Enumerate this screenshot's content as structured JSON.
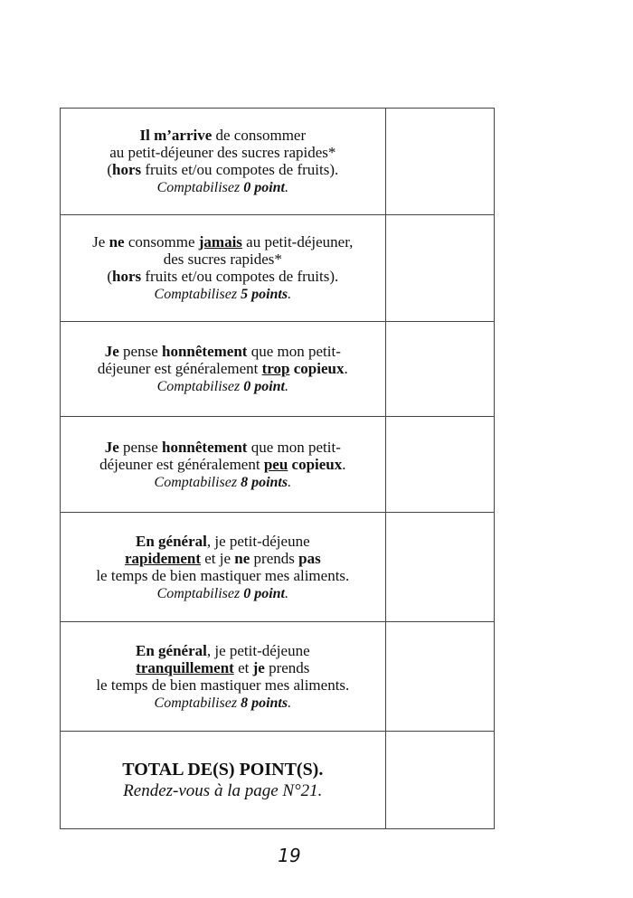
{
  "rows": [
    {
      "lines": [
        [
          {
            "t": "Il m’arrive",
            "b": 1
          },
          {
            "t": " de consommer"
          }
        ],
        [
          {
            "t": "au petit-déjeuner des sucres rapides*"
          }
        ],
        [
          {
            "t": "("
          },
          {
            "t": "hors",
            "b": 1
          },
          {
            "t": " fruits et/ou compotes de fruits)."
          }
        ],
        [
          {
            "t": "Comptabilisez ",
            "i": 1
          },
          {
            "t": "0 point",
            "i": 1,
            "b": 1
          },
          {
            "t": ".",
            "i": 1
          }
        ]
      ]
    },
    {
      "lines": [
        [
          {
            "t": "Je "
          },
          {
            "t": "ne",
            "b": 1
          },
          {
            "t": " consomme "
          },
          {
            "t": "jamais",
            "b": 1,
            "u": 1
          },
          {
            "t": " au petit-déjeuner,"
          }
        ],
        [
          {
            "t": "des sucres rapides*"
          }
        ],
        [
          {
            "t": "("
          },
          {
            "t": "hors",
            "b": 1
          },
          {
            "t": " fruits et/ou compotes de fruits)."
          }
        ],
        [
          {
            "t": "Comptabilisez ",
            "i": 1
          },
          {
            "t": "5 points",
            "i": 1,
            "b": 1
          },
          {
            "t": ".",
            "i": 1
          }
        ]
      ]
    },
    {
      "lines": [
        [
          {
            "t": "Je",
            "b": 1
          },
          {
            "t": " pense "
          },
          {
            "t": "honnêtement",
            "b": 1
          },
          {
            "t": " que mon petit-"
          }
        ],
        [
          {
            "t": "déjeuner est généralement "
          },
          {
            "t": "trop",
            "b": 1,
            "u": 1
          },
          {
            "t": " "
          },
          {
            "t": "copieux",
            "b": 1
          },
          {
            "t": "."
          }
        ],
        [
          {
            "t": "Comptabilisez ",
            "i": 1
          },
          {
            "t": "0 point",
            "i": 1,
            "b": 1
          },
          {
            "t": ".",
            "i": 1
          }
        ]
      ]
    },
    {
      "lines": [
        [
          {
            "t": "Je",
            "b": 1
          },
          {
            "t": " pense "
          },
          {
            "t": "honnêtement",
            "b": 1
          },
          {
            "t": " que mon petit-"
          }
        ],
        [
          {
            "t": "déjeuner est généralement "
          },
          {
            "t": "peu",
            "b": 1,
            "u": 1
          },
          {
            "t": " "
          },
          {
            "t": "copieux",
            "b": 1
          },
          {
            "t": "."
          }
        ],
        [
          {
            "t": "Comptabilisez ",
            "i": 1
          },
          {
            "t": "8 points",
            "i": 1,
            "b": 1
          },
          {
            "t": ".",
            "i": 1
          }
        ]
      ]
    },
    {
      "lines": [
        [
          {
            "t": "En général",
            "b": 1
          },
          {
            "t": ", je petit-déjeune"
          }
        ],
        [
          {
            "t": "rapidement",
            "b": 1,
            "u": 1
          },
          {
            "t": " et je "
          },
          {
            "t": "ne",
            "b": 1
          },
          {
            "t": " prends "
          },
          {
            "t": "pas",
            "b": 1
          }
        ],
        [
          {
            "t": "le temps de bien mastiquer mes aliments."
          }
        ],
        [
          {
            "t": "Comptabilisez ",
            "i": 1
          },
          {
            "t": "0 point",
            "i": 1,
            "b": 1
          },
          {
            "t": ".",
            "i": 1
          }
        ]
      ]
    },
    {
      "lines": [
        [
          {
            "t": "En général",
            "b": 1
          },
          {
            "t": ", je petit-déjeune"
          }
        ],
        [
          {
            "t": "tranquillement",
            "b": 1,
            "u": 1
          },
          {
            "t": " et "
          },
          {
            "t": "je",
            "b": 1
          },
          {
            "t": " prends"
          }
        ],
        [
          {
            "t": "le temps de bien mastiquer mes aliments."
          }
        ],
        [
          {
            "t": "Comptabilisez ",
            "i": 1
          },
          {
            "t": "8 points",
            "i": 1,
            "b": 1
          },
          {
            "t": ".",
            "i": 1
          }
        ]
      ]
    }
  ],
  "total": {
    "label": "TOTAL DE(S) POINT(S).",
    "instruction": "Rendez-vous à la page N°21."
  },
  "page_number": "19"
}
